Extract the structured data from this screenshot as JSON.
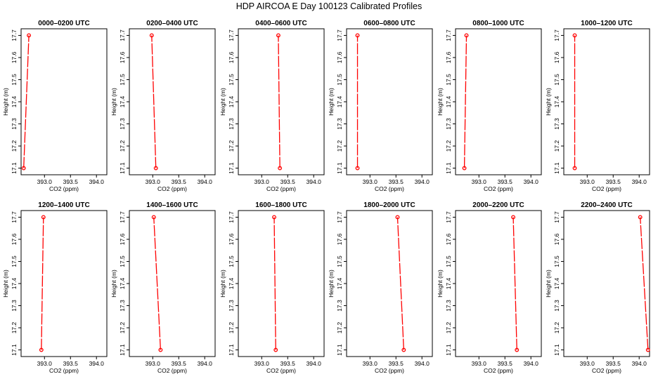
{
  "figure": {
    "title": "HDP AIRCOA E  Day 100123  Calibrated Profiles"
  },
  "colors": {
    "profile": "#ff0000",
    "axis": "#000000",
    "background": "#ffffff"
  },
  "chart_data": [
    {
      "type": "line",
      "title": "0000–0200 UTC",
      "xlabel": "CO2 (ppm)",
      "ylabel": "Height (m)",
      "xlim": [
        392.55,
        394.2
      ],
      "ylim": [
        17.07,
        17.73
      ],
      "xticks": [
        393.0,
        393.5,
        394.0
      ],
      "xtick_labels": [
        "393.0",
        "393.5",
        "394.0"
      ],
      "yticks": [
        17.1,
        17.2,
        17.3,
        17.4,
        17.5,
        17.6,
        17.7
      ],
      "ytick_labels": [
        "17.1",
        "17.2",
        "17.3",
        "17.4",
        "17.5",
        "17.6",
        "17.7"
      ],
      "points": [
        {
          "x": 392.6,
          "y": 17.1
        },
        {
          "x": 392.7,
          "y": 17.7
        }
      ]
    },
    {
      "type": "line",
      "title": "0200–0400 UTC",
      "xlabel": "CO2 (ppm)",
      "ylabel": "Height (m)",
      "xlim": [
        392.55,
        394.2
      ],
      "ylim": [
        17.07,
        17.73
      ],
      "xticks": [
        393.0,
        393.5,
        394.0
      ],
      "xtick_labels": [
        "393.0",
        "393.5",
        "394.0"
      ],
      "yticks": [
        17.1,
        17.2,
        17.3,
        17.4,
        17.5,
        17.6,
        17.7
      ],
      "ytick_labels": [
        "17.1",
        "17.2",
        "17.3",
        "17.4",
        "17.5",
        "17.6",
        "17.7"
      ],
      "points": [
        {
          "x": 393.06,
          "y": 17.1
        },
        {
          "x": 392.98,
          "y": 17.7
        }
      ]
    },
    {
      "type": "line",
      "title": "0400–0600 UTC",
      "xlabel": "CO2 (ppm)",
      "ylabel": "Height (m)",
      "xlim": [
        392.55,
        394.2
      ],
      "ylim": [
        17.07,
        17.73
      ],
      "xticks": [
        393.0,
        393.5,
        394.0
      ],
      "xtick_labels": [
        "393.0",
        "393.5",
        "394.0"
      ],
      "yticks": [
        17.1,
        17.2,
        17.3,
        17.4,
        17.5,
        17.6,
        17.7
      ],
      "ytick_labels": [
        "17.1",
        "17.2",
        "17.3",
        "17.4",
        "17.5",
        "17.6",
        "17.7"
      ],
      "points": [
        {
          "x": 393.35,
          "y": 17.1
        },
        {
          "x": 393.32,
          "y": 17.7
        }
      ]
    },
    {
      "type": "line",
      "title": "0600–0800 UTC",
      "xlabel": "CO2 (ppm)",
      "ylabel": "Height (m)",
      "xlim": [
        392.55,
        394.2
      ],
      "ylim": [
        17.07,
        17.73
      ],
      "xticks": [
        393.0,
        393.5,
        394.0
      ],
      "xtick_labels": [
        "393.0",
        "393.5",
        "394.0"
      ],
      "yticks": [
        17.1,
        17.2,
        17.3,
        17.4,
        17.5,
        17.6,
        17.7
      ],
      "ytick_labels": [
        "17.1",
        "17.2",
        "17.3",
        "17.4",
        "17.5",
        "17.6",
        "17.7"
      ],
      "points": [
        {
          "x": 392.76,
          "y": 17.1
        },
        {
          "x": 392.76,
          "y": 17.7
        }
      ]
    },
    {
      "type": "line",
      "title": "0800–1000 UTC",
      "xlabel": "CO2 (ppm)",
      "ylabel": "Height (m)",
      "xlim": [
        392.55,
        394.2
      ],
      "ylim": [
        17.07,
        17.73
      ],
      "xticks": [
        393.0,
        393.5,
        394.0
      ],
      "xtick_labels": [
        "393.0",
        "393.5",
        "394.0"
      ],
      "yticks": [
        17.1,
        17.2,
        17.3,
        17.4,
        17.5,
        17.6,
        17.7
      ],
      "ytick_labels": [
        "17.1",
        "17.2",
        "17.3",
        "17.4",
        "17.5",
        "17.6",
        "17.7"
      ],
      "points": [
        {
          "x": 392.72,
          "y": 17.1
        },
        {
          "x": 392.76,
          "y": 17.7
        }
      ]
    },
    {
      "type": "line",
      "title": "1000–1200 UTC",
      "xlabel": "CO2 (ppm)",
      "ylabel": "Height (m)",
      "xlim": [
        392.55,
        394.2
      ],
      "ylim": [
        17.07,
        17.73
      ],
      "xticks": [
        393.0,
        393.5,
        394.0
      ],
      "xtick_labels": [
        "393.0",
        "393.5",
        "394.0"
      ],
      "yticks": [
        17.1,
        17.2,
        17.3,
        17.4,
        17.5,
        17.6,
        17.7
      ],
      "ytick_labels": [
        "17.1",
        "17.2",
        "17.3",
        "17.4",
        "17.5",
        "17.6",
        "17.7"
      ],
      "points": [
        {
          "x": 392.76,
          "y": 17.1
        },
        {
          "x": 392.76,
          "y": 17.7
        }
      ]
    },
    {
      "type": "line",
      "title": "1200–1400 UTC",
      "xlabel": "CO2 (ppm)",
      "ylabel": "Height (m)",
      "xlim": [
        392.55,
        394.2
      ],
      "ylim": [
        17.07,
        17.73
      ],
      "xticks": [
        393.0,
        393.5,
        394.0
      ],
      "xtick_labels": [
        "393.0",
        "393.5",
        "394.0"
      ],
      "yticks": [
        17.1,
        17.2,
        17.3,
        17.4,
        17.5,
        17.6,
        17.7
      ],
      "ytick_labels": [
        "17.1",
        "17.2",
        "17.3",
        "17.4",
        "17.5",
        "17.6",
        "17.7"
      ],
      "points": [
        {
          "x": 392.94,
          "y": 17.1
        },
        {
          "x": 392.98,
          "y": 17.7
        }
      ]
    },
    {
      "type": "line",
      "title": "1400–1600 UTC",
      "xlabel": "CO2 (ppm)",
      "ylabel": "Height (m)",
      "xlim": [
        392.55,
        394.2
      ],
      "ylim": [
        17.07,
        17.73
      ],
      "xticks": [
        393.0,
        393.5,
        394.0
      ],
      "xtick_labels": [
        "393.0",
        "393.5",
        "394.0"
      ],
      "yticks": [
        17.1,
        17.2,
        17.3,
        17.4,
        17.5,
        17.6,
        17.7
      ],
      "ytick_labels": [
        "17.1",
        "17.2",
        "17.3",
        "17.4",
        "17.5",
        "17.6",
        "17.7"
      ],
      "points": [
        {
          "x": 393.15,
          "y": 17.1
        },
        {
          "x": 393.02,
          "y": 17.7
        }
      ]
    },
    {
      "type": "line",
      "title": "1600–1800 UTC",
      "xlabel": "CO2 (ppm)",
      "ylabel": "Height (m)",
      "xlim": [
        392.55,
        394.2
      ],
      "ylim": [
        17.07,
        17.73
      ],
      "xticks": [
        393.0,
        393.5,
        394.0
      ],
      "xtick_labels": [
        "393.0",
        "393.5",
        "394.0"
      ],
      "yticks": [
        17.1,
        17.2,
        17.3,
        17.4,
        17.5,
        17.6,
        17.7
      ],
      "ytick_labels": [
        "17.1",
        "17.2",
        "17.3",
        "17.4",
        "17.5",
        "17.6",
        "17.7"
      ],
      "points": [
        {
          "x": 393.27,
          "y": 17.1
        },
        {
          "x": 393.24,
          "y": 17.7
        }
      ]
    },
    {
      "type": "line",
      "title": "1800–2000 UTC",
      "xlabel": "CO2 (ppm)",
      "ylabel": "Height (m)",
      "xlim": [
        392.55,
        394.2
      ],
      "ylim": [
        17.07,
        17.73
      ],
      "xticks": [
        393.0,
        393.5,
        394.0
      ],
      "xtick_labels": [
        "393.0",
        "393.5",
        "394.0"
      ],
      "yticks": [
        17.1,
        17.2,
        17.3,
        17.4,
        17.5,
        17.6,
        17.7
      ],
      "ytick_labels": [
        "17.1",
        "17.2",
        "17.3",
        "17.4",
        "17.5",
        "17.6",
        "17.7"
      ],
      "points": [
        {
          "x": 393.65,
          "y": 17.1
        },
        {
          "x": 393.53,
          "y": 17.7
        }
      ]
    },
    {
      "type": "line",
      "title": "2000–2200 UTC",
      "xlabel": "CO2 (ppm)",
      "ylabel": "Height (m)",
      "xlim": [
        392.55,
        394.2
      ],
      "ylim": [
        17.07,
        17.73
      ],
      "xticks": [
        393.0,
        393.5,
        394.0
      ],
      "xtick_labels": [
        "393.0",
        "393.5",
        "394.0"
      ],
      "yticks": [
        17.1,
        17.2,
        17.3,
        17.4,
        17.5,
        17.6,
        17.7
      ],
      "ytick_labels": [
        "17.1",
        "17.2",
        "17.3",
        "17.4",
        "17.5",
        "17.6",
        "17.7"
      ],
      "points": [
        {
          "x": 393.73,
          "y": 17.1
        },
        {
          "x": 393.66,
          "y": 17.7
        }
      ]
    },
    {
      "type": "line",
      "title": "2200–2400 UTC",
      "xlabel": "CO2 (ppm)",
      "ylabel": "Height (m)",
      "xlim": [
        392.55,
        394.2
      ],
      "ylim": [
        17.07,
        17.73
      ],
      "xticks": [
        393.0,
        393.5,
        394.0
      ],
      "xtick_labels": [
        "393.0",
        "393.5",
        "394.0"
      ],
      "yticks": [
        17.1,
        17.2,
        17.3,
        17.4,
        17.5,
        17.6,
        17.7
      ],
      "ytick_labels": [
        "17.1",
        "17.2",
        "17.3",
        "17.4",
        "17.5",
        "17.6",
        "17.7"
      ],
      "points": [
        {
          "x": 394.17,
          "y": 17.1
        },
        {
          "x": 394.02,
          "y": 17.7
        }
      ]
    }
  ]
}
